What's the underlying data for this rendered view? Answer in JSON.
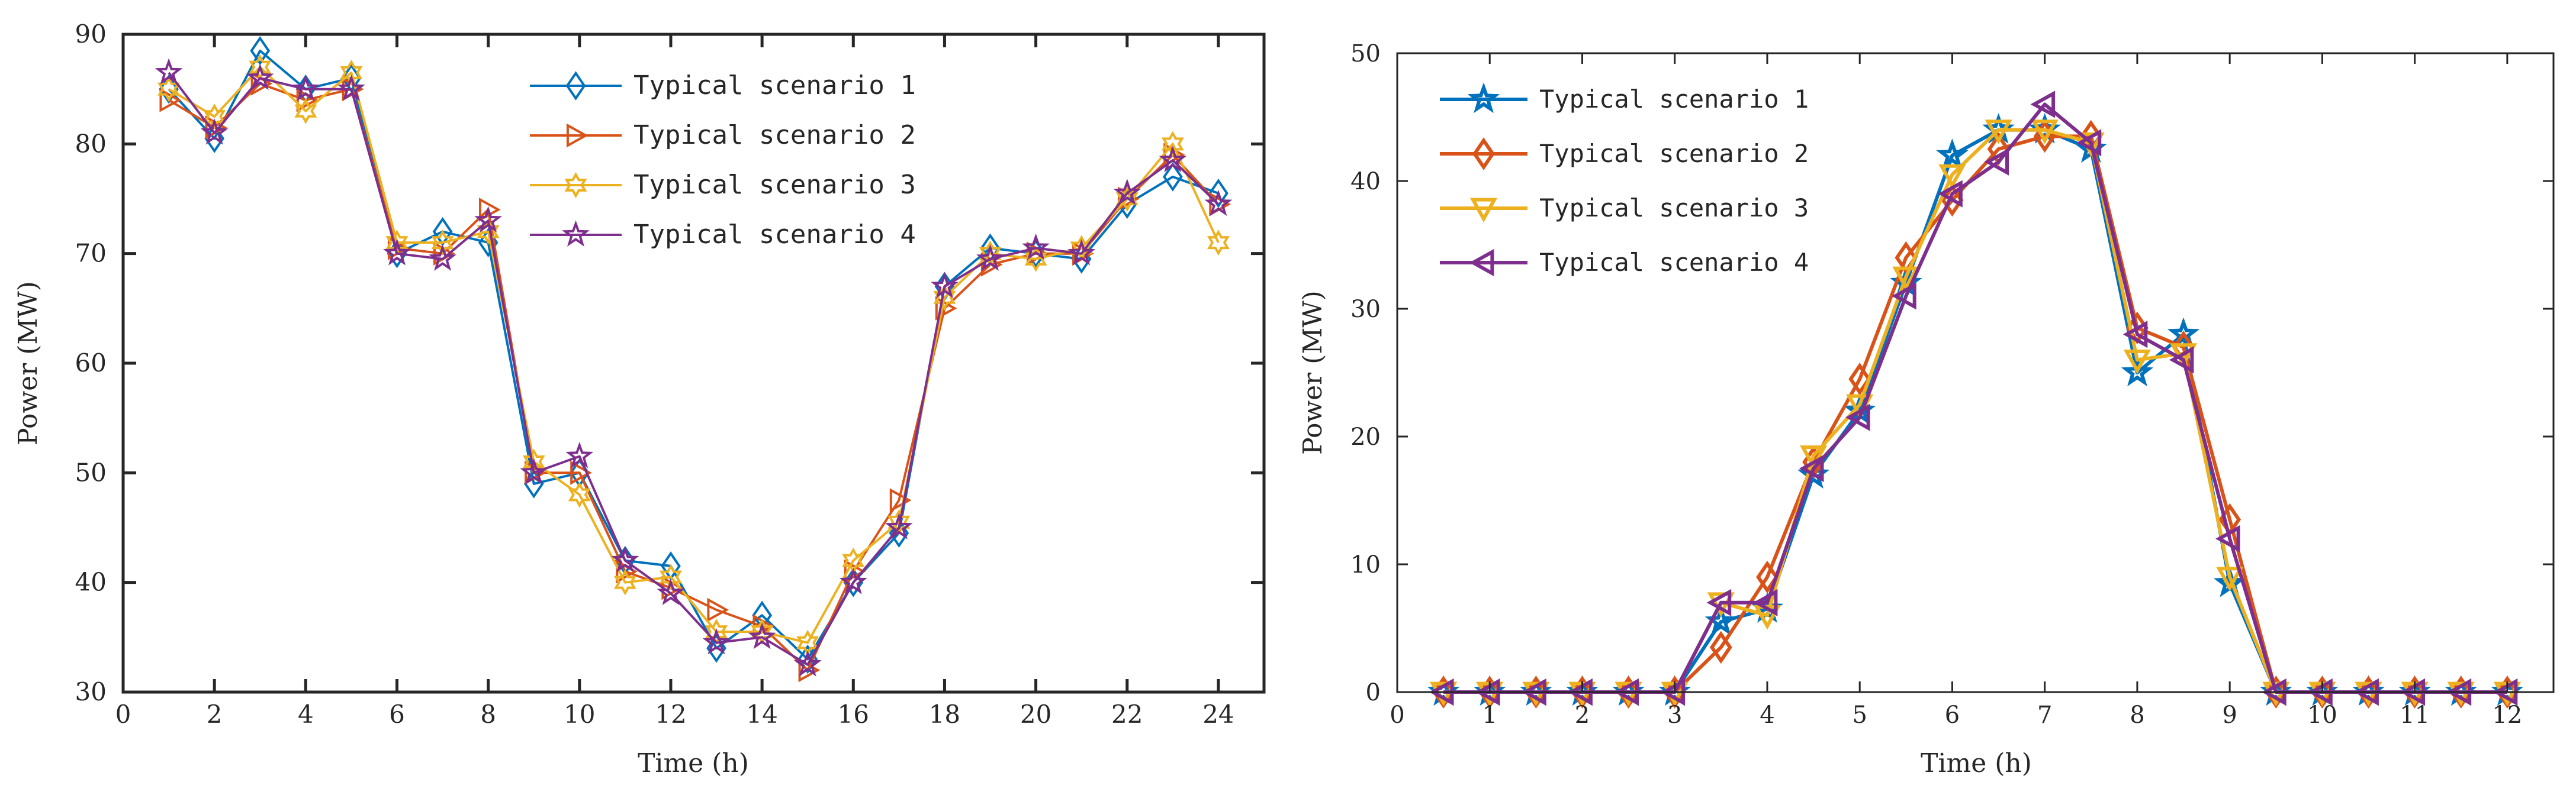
{
  "chart_data": [
    {
      "type": "line",
      "title": "",
      "xlabel": "Time (h)",
      "ylabel": "Power (MW)",
      "xlim": [
        0,
        25
      ],
      "ylim": [
        30,
        90
      ],
      "xticks": [
        0,
        2,
        4,
        6,
        8,
        10,
        12,
        14,
        16,
        18,
        20,
        22,
        24
      ],
      "yticks": [
        30,
        40,
        50,
        60,
        70,
        80,
        90
      ],
      "xtick_labels": [
        "0",
        "2",
        "4",
        "6",
        "8",
        "10",
        "12",
        "14",
        "16",
        "18",
        "20",
        "22",
        "24"
      ],
      "ytick_labels": [
        "30",
        "40",
        "50",
        "60",
        "70",
        "80",
        "90"
      ],
      "legend_position": "top-center",
      "x": [
        1,
        2,
        3,
        4,
        5,
        6,
        7,
        8,
        9,
        10,
        11,
        12,
        13,
        14,
        15,
        16,
        17,
        18,
        19,
        20,
        21,
        22,
        23,
        24
      ],
      "series": [
        {
          "name": "Typical scenario 1",
          "color": "#0072BD",
          "marker": "diamond",
          "values": [
            85,
            80.5,
            88.5,
            85,
            86,
            70,
            72,
            71,
            49,
            50,
            42,
            41.5,
            34,
            37,
            33,
            40,
            44.5,
            67,
            70.5,
            70,
            69.5,
            74.5,
            77,
            75.5
          ]
        },
        {
          "name": "Typical scenario 2",
          "color": "#D95319",
          "marker": "triangle-right",
          "values": [
            84,
            81.5,
            85.5,
            84,
            85,
            70.5,
            70,
            74,
            50,
            50,
            41,
            39.5,
            37.5,
            36,
            32,
            41,
            47.5,
            65,
            69,
            70,
            70,
            75,
            79,
            74.5
          ]
        },
        {
          "name": "Typical scenario 3",
          "color": "#EDB120",
          "marker": "hexagram",
          "values": [
            85,
            82.5,
            87,
            83,
            86.5,
            71,
            71,
            72,
            51,
            48,
            40,
            40.5,
            35.5,
            35.5,
            34.5,
            42,
            45.5,
            66,
            70,
            69.5,
            70.5,
            75,
            80,
            71
          ]
        },
        {
          "name": "Typical scenario 4",
          "color": "#7E2F8E",
          "marker": "pentagram",
          "values": [
            86.5,
            81,
            86,
            85,
            85,
            70,
            69.5,
            73,
            50,
            51.5,
            42,
            39,
            34.5,
            35,
            32.5,
            40,
            45,
            67,
            69.5,
            70.5,
            70,
            75.5,
            78.5,
            74.5
          ]
        }
      ]
    },
    {
      "type": "line",
      "title": "",
      "xlabel": "Time (h)",
      "ylabel": "Power (MW)",
      "xlim": [
        0,
        12.5
      ],
      "ylim": [
        0,
        50
      ],
      "xticks": [
        0,
        1,
        2,
        3,
        4,
        5,
        6,
        7,
        8,
        9,
        10,
        11,
        12
      ],
      "yticks": [
        0,
        10,
        20,
        30,
        40,
        50
      ],
      "xtick_labels": [
        "0",
        "1",
        "2",
        "3",
        "4",
        "5",
        "6",
        "7",
        "8",
        "9",
        "10",
        "11",
        "12"
      ],
      "ytick_labels": [
        "0",
        "10",
        "20",
        "30",
        "40",
        "50"
      ],
      "legend_position": "top-left",
      "x": [
        0.5,
        1,
        1.5,
        2,
        2.5,
        3,
        3.5,
        4,
        4.5,
        5,
        5.5,
        6,
        6.5,
        7,
        7.5,
        8,
        8.5,
        9,
        9.5,
        10,
        10.5,
        11,
        11.5,
        12
      ],
      "series": [
        {
          "name": "Typical scenario 1",
          "color": "#0072BD",
          "marker": "pentagram",
          "values": [
            0,
            0,
            0,
            0,
            0,
            0,
            5.5,
            6.5,
            17,
            22,
            32,
            42,
            44,
            44,
            42.5,
            25,
            28,
            8.5,
            0,
            0,
            0,
            0,
            0,
            0
          ]
        },
        {
          "name": "Typical scenario 2",
          "color": "#D95319",
          "marker": "diamond",
          "values": [
            0,
            0,
            0,
            0,
            0,
            0,
            3.5,
            9,
            18,
            24.5,
            34,
            38.5,
            42.5,
            43.5,
            43.5,
            28.5,
            27,
            13.5,
            0,
            0,
            0,
            0,
            0,
            0
          ]
        },
        {
          "name": "Typical scenario 3",
          "color": "#EDB120",
          "marker": "triangle-down",
          "values": [
            0,
            0,
            0,
            0,
            0,
            0,
            7,
            6,
            18.5,
            22.5,
            32.5,
            40.5,
            44,
            44,
            43,
            26,
            26.5,
            9,
            0,
            0,
            0,
            0,
            0,
            0
          ]
        },
        {
          "name": "Typical scenario 4",
          "color": "#7E2F8E",
          "marker": "triangle-left",
          "values": [
            0,
            0,
            0,
            0,
            0,
            0,
            7,
            7,
            17.5,
            21.5,
            31,
            39,
            41.5,
            46,
            43,
            28,
            26,
            12,
            0,
            0,
            0,
            0,
            0,
            0
          ]
        }
      ]
    }
  ]
}
